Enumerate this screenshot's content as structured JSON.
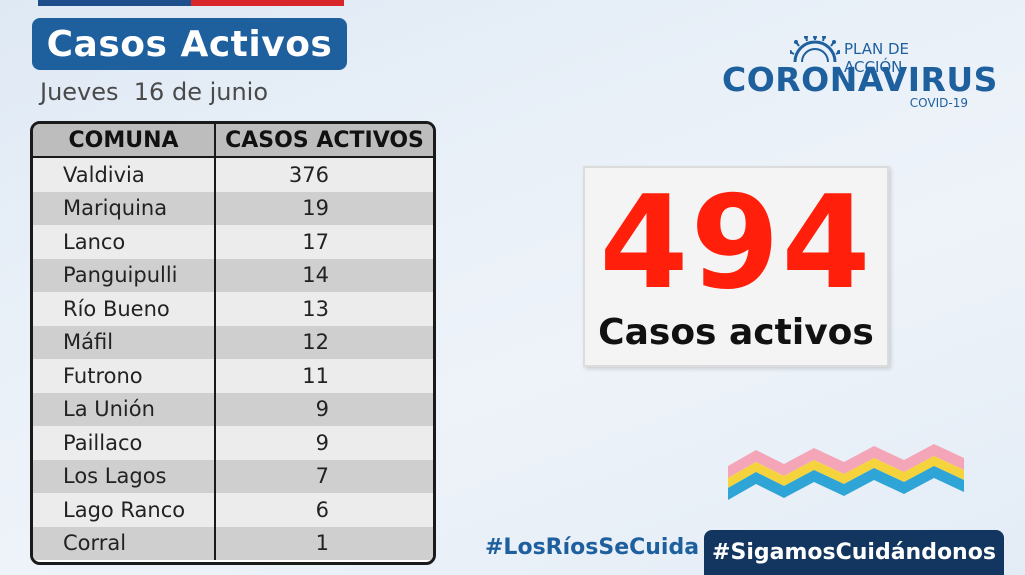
{
  "header": {
    "title": "Casos Activos",
    "date": "Jueves  16 de junio"
  },
  "table": {
    "columns": [
      "COMUNA",
      "CASOS ACTIVOS"
    ],
    "rows": [
      {
        "comuna": "Valdivia",
        "casos": "376"
      },
      {
        "comuna": "Mariquina",
        "casos": "19"
      },
      {
        "comuna": "Lanco",
        "casos": "17"
      },
      {
        "comuna": "Panguipulli",
        "casos": "14"
      },
      {
        "comuna": "Río Bueno",
        "casos": "13"
      },
      {
        "comuna": "Máfil",
        "casos": "12"
      },
      {
        "comuna": "Futrono",
        "casos": "11"
      },
      {
        "comuna": "La Unión",
        "casos": "9"
      },
      {
        "comuna": "Paillaco",
        "casos": "9"
      },
      {
        "comuna": "Los Lagos",
        "casos": "7"
      },
      {
        "comuna": "Lago Ranco",
        "casos": "6"
      },
      {
        "comuna": "Corral",
        "casos": "1"
      }
    ]
  },
  "logo": {
    "plan": "PLAN DE ACCIÓN",
    "name": "CORONAVIRUS",
    "sub": "COVID-19",
    "icon": "virus-icon"
  },
  "total": {
    "value": "494",
    "label": "Casos activos"
  },
  "footer": {
    "hashtag_1": "#LosRíosSeCuida",
    "hashtag_2": "#SigamosCuidándonos"
  },
  "colors": {
    "brand_blue": "#1e5f9e",
    "dark_navy": "#12365f",
    "accent_red": "#ff1f0a",
    "wave_pink": "#f4a6b8",
    "wave_yellow": "#f5d33c",
    "wave_blue": "#2fa4d6"
  }
}
